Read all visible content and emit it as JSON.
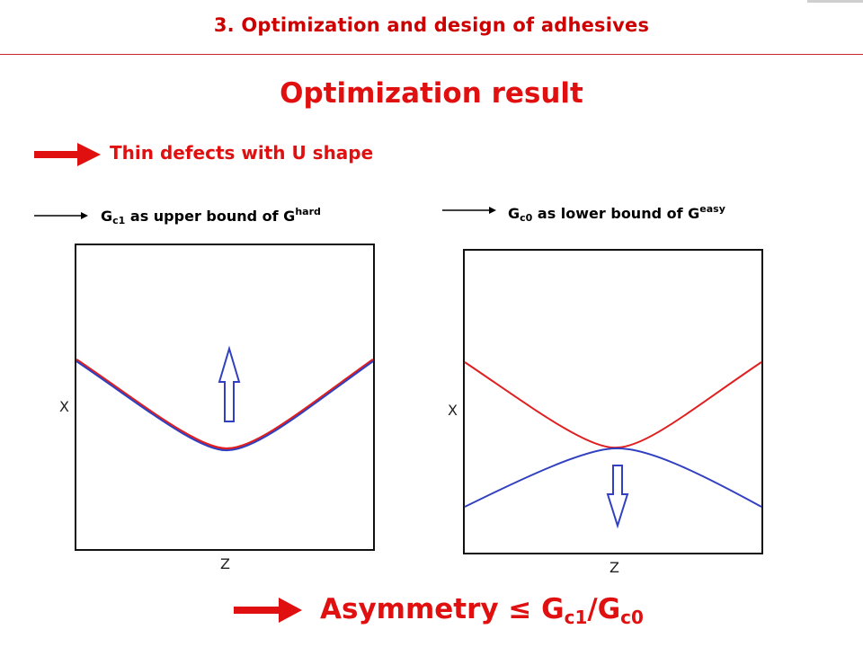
{
  "header": {
    "title": "3. Optimization and design of adhesives"
  },
  "main_title": "Optimization result",
  "bullet1": "Thin defects with U shape",
  "left_label": {
    "prefix": "G",
    "sub": "c1",
    "mid": " as upper bound of G",
    "sup": "hard"
  },
  "right_label": {
    "prefix": "G",
    "sub": "c0",
    "mid": " as lower bound of G",
    "sup": "easy"
  },
  "left_panel": {
    "ylabel": "X",
    "xlabel": "Z"
  },
  "right_panel": {
    "ylabel": "X",
    "xlabel": "Z"
  },
  "bottom": {
    "text": "Asymmetry ≤ G",
    "sub1": "c1",
    "slash": "/G",
    "sub2": "c0"
  },
  "colors": {
    "accent_red": "#e01010",
    "curve_red": "#e02020",
    "curve_blue": "#3040c0"
  }
}
